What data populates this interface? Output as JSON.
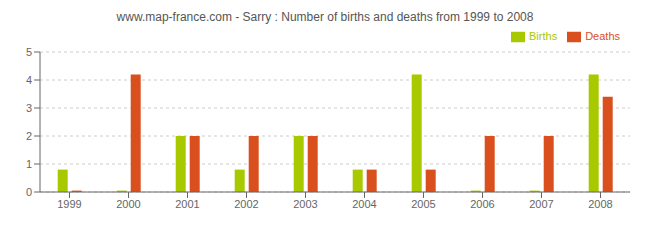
{
  "chart_data": {
    "type": "bar",
    "title": "www.map-france.com - Sarry : Number of births and deaths from 1999 to 2008",
    "categories": [
      "1999",
      "2000",
      "2001",
      "2002",
      "2003",
      "2004",
      "2005",
      "2006",
      "2007",
      "2008"
    ],
    "series": [
      {
        "name": "Births",
        "color": "#a8c800",
        "values": [
          0.8,
          0.05,
          2.0,
          0.8,
          2.0,
          0.8,
          4.2,
          0.05,
          0.05,
          4.2
        ]
      },
      {
        "name": "Deaths",
        "color": "#d94f1e",
        "values": [
          0.05,
          4.2,
          2.0,
          2.0,
          2.0,
          0.8,
          0.8,
          2.0,
          2.0,
          3.4
        ]
      }
    ],
    "ylim": [
      0,
      5
    ],
    "yticks": [
      0,
      1,
      2,
      3,
      4,
      5
    ],
    "grid": true,
    "legend": "upper right"
  }
}
